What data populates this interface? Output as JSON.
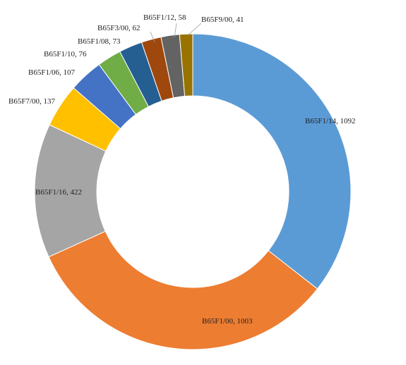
{
  "chart_data": {
    "type": "pie",
    "variant": "donut",
    "legend": "none",
    "slices": [
      {
        "category": "B65F1/14",
        "value": 1092,
        "color": "#5B9BD5"
      },
      {
        "category": "B65F1/00",
        "value": 1003,
        "color": "#ED7D31"
      },
      {
        "category": "B65F1/16",
        "value": 422,
        "color": "#A5A5A5"
      },
      {
        "category": "B65F7/00",
        "value": 137,
        "color": "#FFC000"
      },
      {
        "category": "B65F1/06",
        "value": 107,
        "color": "#4472C4"
      },
      {
        "category": "B65F1/10",
        "value": 76,
        "color": "#70AD47"
      },
      {
        "category": "B65F1/08",
        "value": 73,
        "color": "#255E91"
      },
      {
        "category": "B65F3/00",
        "value": 62,
        "color": "#9E480E"
      },
      {
        "category": "B65F1/12",
        "value": 58,
        "color": "#636363"
      },
      {
        "category": "B65F9/00",
        "value": 41,
        "color": "#997300"
      }
    ],
    "labels": [
      "B65F1/14, 1092",
      "B65F1/00, 1003",
      "B65F1/16, 422",
      "B65F7/00, 137",
      "B65F1/06, 107",
      "B65F1/10, 76",
      "B65F1/08, 73",
      "B65F3/00, 62",
      "B65F1/12, 58",
      "B65F9/00, 41"
    ]
  }
}
